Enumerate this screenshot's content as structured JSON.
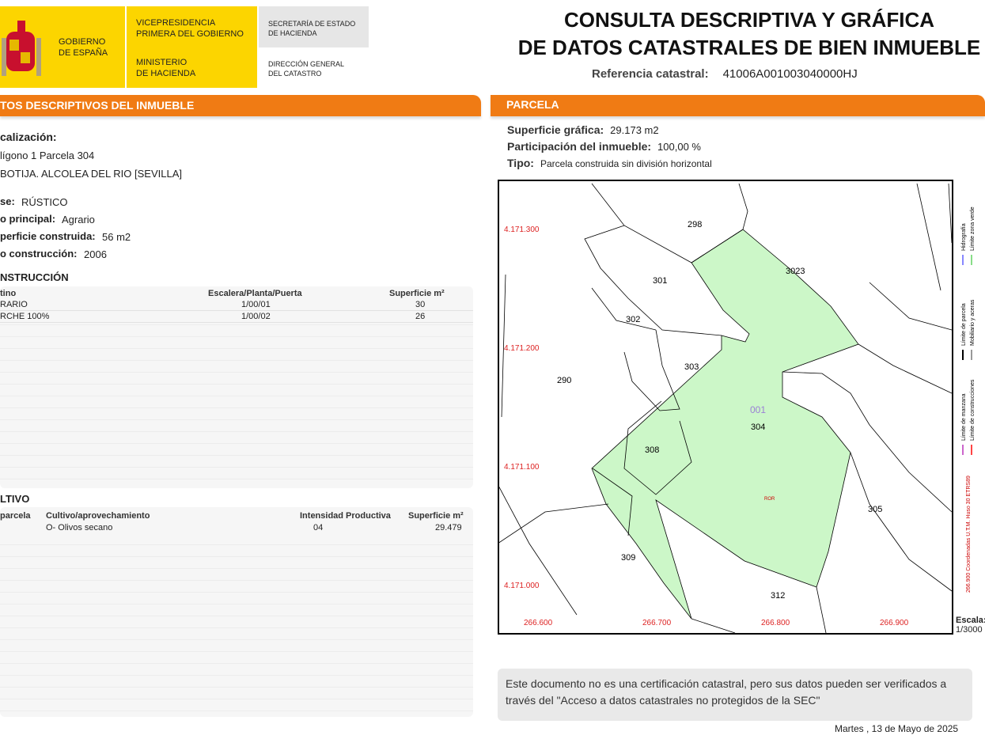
{
  "header": {
    "gobierno": [
      "GOBIERNO",
      "DE ESPAÑA"
    ],
    "vicepresidencia": [
      "VICEPRESIDENCIA",
      "PRIMERA DEL GOBIERNO"
    ],
    "ministerio": [
      "MINISTERIO",
      "DE HACIENDA"
    ],
    "secretaria": [
      "SECRETARÍA DE ESTADO",
      "DE HACIENDA"
    ],
    "direccion": [
      "DIRECCIÓN GENERAL",
      "DEL CATASTRO"
    ],
    "title": [
      "CONSULTA DESCRIPTIVA Y GRÁFICA",
      "DE DATOS CATASTRALES DE BIEN INMUEBLE"
    ],
    "ref_label": "Referencia catastral:",
    "ref_value": "41006A001003040000HJ"
  },
  "left": {
    "section": "TOS DESCRIPTIVOS DEL INMUEBLE",
    "loc_label": "calización:",
    "loc_lines": [
      "lígono 1 Parcela 304",
      "BOTIJA. ALCOLEA DEL RIO [SEVILLA]"
    ],
    "fields": [
      {
        "label": "se:",
        "value": "RÚSTICO"
      },
      {
        "label": "o principal:",
        "value": "Agrario"
      },
      {
        "label": "perficie construida:",
        "value": "56 m2"
      },
      {
        "label": "o construcción:",
        "value": "2006"
      }
    ],
    "construccion": {
      "title": "NSTRUCCIÓN",
      "headers": [
        "tino",
        "Escalera/Planta/Puerta",
        "Superficie m²"
      ],
      "rows": [
        [
          "RARIO",
          "1/00/01",
          "30"
        ],
        [
          "RCHE 100%",
          "1/00/02",
          "26"
        ]
      ]
    },
    "cultivo": {
      "title": "LTIVO",
      "headers": [
        "parcela",
        "Cultivo/aprovechamiento",
        "Intensidad Productiva",
        "Superficie m²"
      ],
      "rows": [
        {
          "cultivo": "O- Olivos secano",
          "intensidad": "04",
          "superficie": "29.479"
        }
      ]
    }
  },
  "right": {
    "section": "PARCELA",
    "fields": [
      {
        "label": "Superficie gráfica:",
        "value": "29.173 m2"
      },
      {
        "label": "Participación del inmueble:",
        "value": "100,00 %"
      },
      {
        "label": "Tipo:",
        "value": "Parcela construida sin división horizontal"
      }
    ],
    "map": {
      "parcels": [
        "298",
        "301",
        "3023",
        "302",
        "303",
        "290",
        "304",
        "308",
        "305",
        "309",
        "312"
      ],
      "subparcel": "001",
      "building": "ROR",
      "y_coords": [
        "4.171.300",
        "4.171.200",
        "4.171.100",
        "4.171.000"
      ],
      "x_coords": [
        "266.600",
        "266.700",
        "266.800",
        "266.900"
      ],
      "legend": [
        "Hidrografía",
        "Límite zona verde",
        "Límite de parcela",
        "Mobiliario y aceras",
        "Límite de manzana",
        "Límite de construcciones"
      ],
      "crs": "266.900 Coordenadas U.T.M. Huso 30 ETRS89",
      "scale_label": "Escala:",
      "scale": "1/3000"
    },
    "note": "Este documento no es una certificación catastral, pero sus datos pueden ser verificados a través del \"Acceso a datos catastrales no protegidos de la SEC\"",
    "date": "Martes , 13 de Mayo de 2025"
  }
}
